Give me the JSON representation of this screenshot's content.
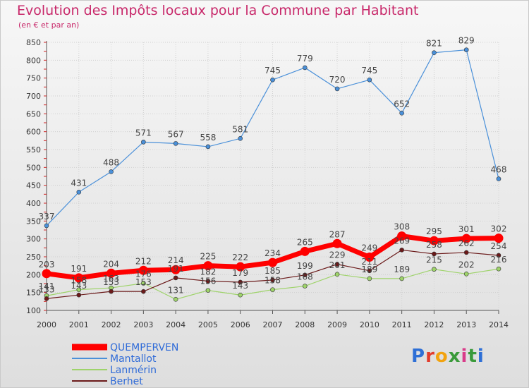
{
  "header": {
    "title": "Evolution des Impôts locaux pour la Commune par Habitant",
    "subtitle": "(en € et par an)"
  },
  "logo": {
    "text": "Proxiti",
    "letter_colors": [
      "#2e6fd6",
      "#e23c2c",
      "#f2a30f",
      "#3a9a3a",
      "#d93c8a",
      "#3a9a3a",
      "#2e6fd6"
    ]
  },
  "chart_data": {
    "type": "line",
    "x": [
      "2000",
      "2001",
      "2002",
      "2003",
      "2004",
      "2005",
      "2006",
      "2007",
      "2008",
      "2009",
      "2010",
      "2011",
      "2012",
      "2013",
      "2014"
    ],
    "ylim": [
      100,
      850
    ],
    "yticks": [
      100,
      150,
      200,
      250,
      300,
      350,
      400,
      450,
      500,
      550,
      600,
      650,
      700,
      750,
      800,
      850
    ],
    "grid": true,
    "legend_position": "bottom-left",
    "series": [
      {
        "name": "QUEMPERVEN",
        "color": "#ff0000",
        "emphasis": true,
        "values": [
          203,
          191,
          204,
          212,
          214,
          225,
          222,
          234,
          265,
          287,
          249,
          308,
          295,
          301,
          302
        ]
      },
      {
        "name": "Mantallot",
        "color": "#4a90d9",
        "emphasis": false,
        "values": [
          337,
          431,
          488,
          571,
          567,
          558,
          581,
          745,
          779,
          720,
          745,
          652,
          821,
          829,
          468
        ]
      },
      {
        "name": "Lanmérin",
        "color": "#9ed36a",
        "emphasis": false,
        "values": [
          141,
          158,
          163,
          176,
          131,
          156,
          143,
          158,
          168,
          201,
          189,
          189,
          215,
          202,
          216
        ]
      },
      {
        "name": "Berhet",
        "color": "#6b1a1a",
        "emphasis": false,
        "values": [
          133,
          143,
          153,
          153,
          191,
          182,
          179,
          185,
          199,
          229,
          211,
          269,
          258,
          262,
          254
        ]
      }
    ],
    "label_order": [
      1,
      0,
      2,
      3
    ]
  }
}
